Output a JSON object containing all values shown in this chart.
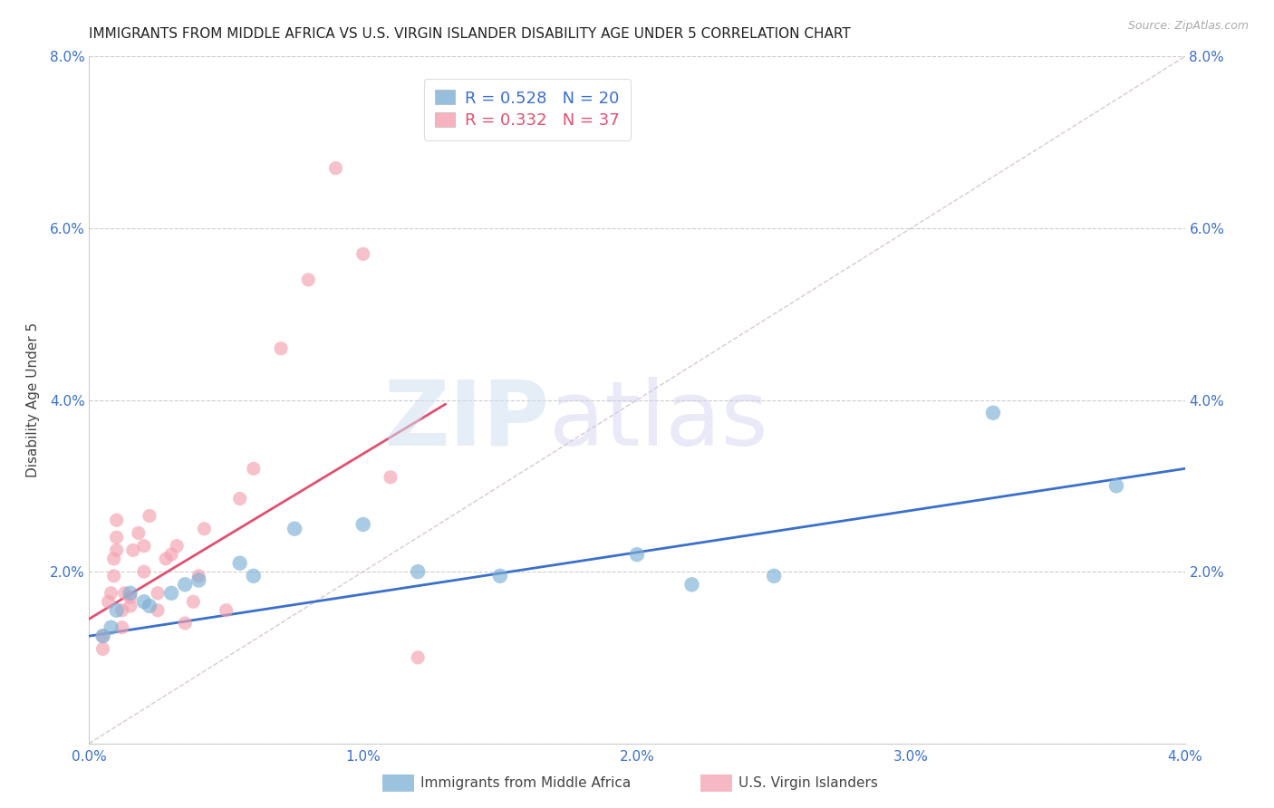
{
  "title": "IMMIGRANTS FROM MIDDLE AFRICA VS U.S. VIRGIN ISLANDER DISABILITY AGE UNDER 5 CORRELATION CHART",
  "source": "Source: ZipAtlas.com",
  "ylabel": "Disability Age Under 5",
  "xlim": [
    0.0,
    0.04
  ],
  "ylim": [
    0.0,
    0.08
  ],
  "xticks": [
    0.0,
    0.01,
    0.02,
    0.03,
    0.04
  ],
  "yticks": [
    0.0,
    0.02,
    0.04,
    0.06,
    0.08
  ],
  "xtick_labels": [
    "0.0%",
    "1.0%",
    "2.0%",
    "3.0%",
    "4.0%"
  ],
  "ytick_labels": [
    "",
    "2.0%",
    "4.0%",
    "6.0%",
    "8.0%"
  ],
  "legend_label1": "Immigrants from Middle Africa",
  "legend_label2": "U.S. Virgin Islanders",
  "R1": 0.528,
  "N1": 20,
  "R2": 0.332,
  "N2": 37,
  "blue_color": "#7bafd4",
  "pink_color": "#f4a0b0",
  "blue_line_color": "#3a6fcc",
  "pink_line_color": "#e05070",
  "blue_dots": [
    [
      0.0005,
      0.0125
    ],
    [
      0.0008,
      0.0135
    ],
    [
      0.001,
      0.0155
    ],
    [
      0.0015,
      0.0175
    ],
    [
      0.002,
      0.0165
    ],
    [
      0.0022,
      0.016
    ],
    [
      0.003,
      0.0175
    ],
    [
      0.0035,
      0.0185
    ],
    [
      0.004,
      0.019
    ],
    [
      0.0055,
      0.021
    ],
    [
      0.006,
      0.0195
    ],
    [
      0.0075,
      0.025
    ],
    [
      0.01,
      0.0255
    ],
    [
      0.012,
      0.02
    ],
    [
      0.015,
      0.0195
    ],
    [
      0.02,
      0.022
    ],
    [
      0.022,
      0.0185
    ],
    [
      0.025,
      0.0195
    ],
    [
      0.033,
      0.0385
    ],
    [
      0.0375,
      0.03
    ]
  ],
  "pink_dots": [
    [
      0.0005,
      0.011
    ],
    [
      0.0005,
      0.0125
    ],
    [
      0.0007,
      0.0165
    ],
    [
      0.0008,
      0.0175
    ],
    [
      0.0009,
      0.0195
    ],
    [
      0.0009,
      0.0215
    ],
    [
      0.001,
      0.0225
    ],
    [
      0.001,
      0.024
    ],
    [
      0.001,
      0.026
    ],
    [
      0.0012,
      0.0135
    ],
    [
      0.0012,
      0.0155
    ],
    [
      0.0013,
      0.0175
    ],
    [
      0.0015,
      0.016
    ],
    [
      0.0015,
      0.017
    ],
    [
      0.0016,
      0.0225
    ],
    [
      0.0018,
      0.0245
    ],
    [
      0.002,
      0.02
    ],
    [
      0.002,
      0.023
    ],
    [
      0.0022,
      0.0265
    ],
    [
      0.0025,
      0.0155
    ],
    [
      0.0025,
      0.0175
    ],
    [
      0.0028,
      0.0215
    ],
    [
      0.003,
      0.022
    ],
    [
      0.0032,
      0.023
    ],
    [
      0.0035,
      0.014
    ],
    [
      0.0038,
      0.0165
    ],
    [
      0.004,
      0.0195
    ],
    [
      0.0042,
      0.025
    ],
    [
      0.005,
      0.0155
    ],
    [
      0.0055,
      0.0285
    ],
    [
      0.006,
      0.032
    ],
    [
      0.007,
      0.046
    ],
    [
      0.008,
      0.054
    ],
    [
      0.009,
      0.067
    ],
    [
      0.01,
      0.057
    ],
    [
      0.011,
      0.031
    ],
    [
      0.012,
      0.01
    ]
  ],
  "blue_line": {
    "x0": 0.0,
    "y0": 0.0125,
    "x1": 0.04,
    "y1": 0.032
  },
  "pink_line": {
    "x0": 0.0,
    "y0": 0.0145,
    "x1": 0.013,
    "y1": 0.0395
  },
  "diag_line": {
    "x0": 0.0,
    "y0": 0.0,
    "x1": 0.04,
    "y1": 0.08
  }
}
